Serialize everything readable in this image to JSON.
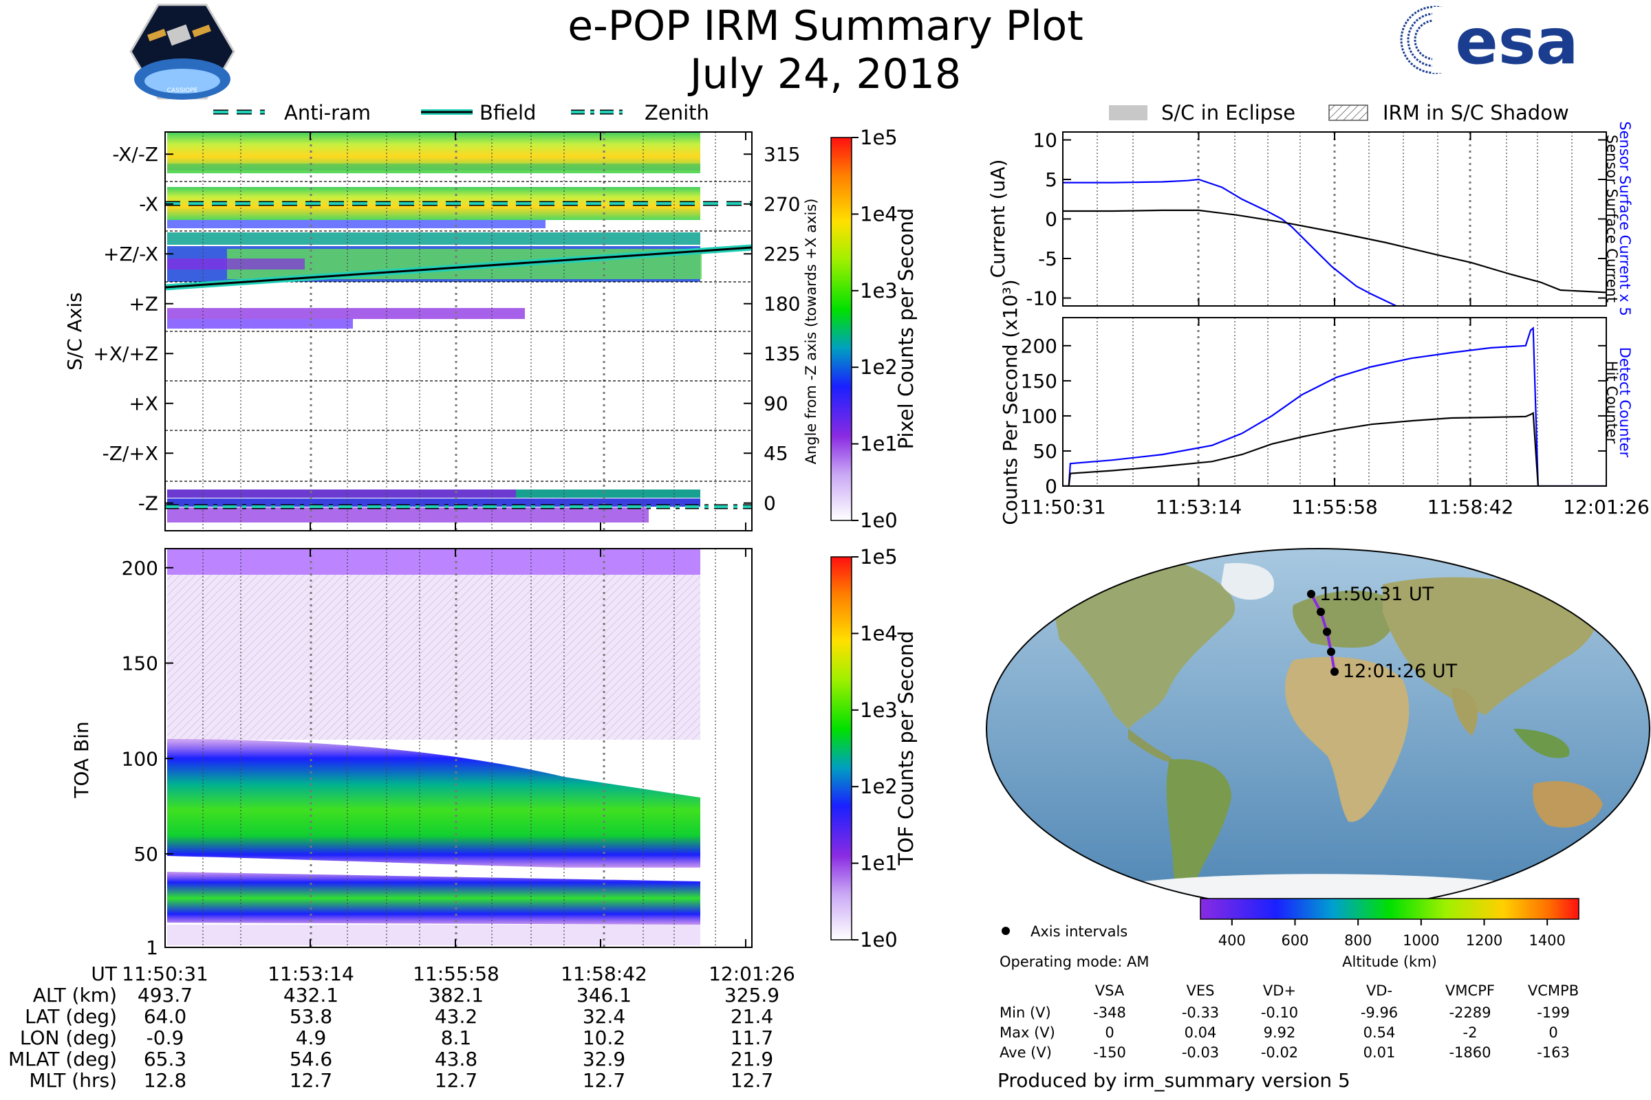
{
  "title": "e-POP IRM Summary Plot",
  "date": "July 24, 2018",
  "logos": {
    "left": "CASSIOPE",
    "right": "esa"
  },
  "legend_top_left": [
    {
      "label": "Anti-ram",
      "style": "dashed",
      "color": "#20d0b8"
    },
    {
      "label": "Bfield",
      "style": "solid",
      "color": "#20d0b8"
    },
    {
      "label": "Zenith",
      "style": "dashdot",
      "color": "#20d0b8"
    }
  ],
  "legend_top_right": [
    {
      "label": "S/C in Eclipse",
      "style": "filled"
    },
    {
      "label": "IRM in S/C Shadow",
      "style": "hatched"
    }
  ],
  "chart_data": [
    {
      "type": "heatmap",
      "name": "S/C Axis pixel counts",
      "ylabel": "S/C Axis",
      "y_tick_labels": [
        "-X/-Z",
        "-X",
        "+Z/-X",
        "+Z",
        "+X/+Z",
        "+X",
        "-Z/+X",
        "-Z"
      ],
      "y2label": "Angle from -Z axis (towards +X axis)",
      "y2_ticks": [
        315,
        270,
        225,
        180,
        135,
        90,
        45,
        0
      ],
      "ylim": [
        -25,
        335
      ],
      "colorbar": {
        "label": "Pixel Counts per Second",
        "ticks": [
          "1e0",
          "1e1",
          "1e2",
          "1e3",
          "1e4",
          "1e5"
        ],
        "scale": "log"
      },
      "lines": [
        {
          "name": "Anti-ram",
          "values_deg": [
            272,
            272
          ]
        },
        {
          "name": "Bfield",
          "values_deg": [
            188,
            234
          ]
        },
        {
          "name": "Zenith",
          "values_deg": [
            0,
            0
          ]
        }
      ]
    },
    {
      "type": "heatmap",
      "name": "TOA spectrogram",
      "ylabel": "TOA Bin",
      "y_ticks": [
        1,
        50,
        100,
        150,
        200
      ],
      "ylim": [
        1,
        210
      ],
      "colorbar": {
        "label": "TOF Counts per Second",
        "ticks": [
          "1e0",
          "1e1",
          "1e2",
          "1e3",
          "1e4",
          "1e5"
        ],
        "scale": "log"
      }
    },
    {
      "type": "line",
      "name": "Current",
      "ylabel": "Current (uA)",
      "y_ticks": [
        10,
        5,
        0,
        -5,
        -10
      ],
      "ylim": [
        -11,
        11
      ],
      "y2label_blue": "Sensor Surface Current x 5",
      "y2label_black": "Sensor Surface Current",
      "series": [
        {
          "name": "Sensor Surface Current x 5",
          "color": "#0000ff",
          "x_min": [
            0,
            1,
            2,
            2.5,
            2.73,
            3.2,
            3.6,
            4.1,
            4.4,
            4.6,
            5.0,
            5.4,
            5.9,
            6.2,
            6.7
          ],
          "y": [
            4.6,
            4.6,
            4.7,
            4.85,
            5.0,
            4.0,
            2.5,
            1.0,
            0.0,
            -1.0,
            -3.5,
            -6.0,
            -8.5,
            -9.5,
            -11
          ]
        },
        {
          "name": "Sensor Surface Current",
          "color": "#000000",
          "x_min": [
            0,
            1,
            2,
            2.73,
            3.5,
            4.5,
            5.5,
            6.5,
            7.5,
            8.2,
            9.0,
            9.6,
            10.0,
            10.92
          ],
          "y": [
            1.0,
            1.0,
            1.1,
            1.1,
            0.5,
            -0.5,
            -1.7,
            -3.0,
            -4.5,
            -5.5,
            -7.0,
            -8.0,
            -9.0,
            -9.3
          ]
        }
      ]
    },
    {
      "type": "line",
      "name": "Counts Per Second",
      "ylabel": "Counts Per Second (x10³)",
      "y_ticks": [
        0,
        50,
        100,
        150,
        200
      ],
      "ylim": [
        0,
        240
      ],
      "y2label_blue": "Detect Counter",
      "y2label_black": "Hit Counter",
      "series": [
        {
          "name": "Detect Counter",
          "color": "#0000ff",
          "x_min": [
            0,
            0.12,
            0.15,
            1.0,
            2.0,
            3.0,
            3.6,
            4.2,
            4.8,
            5.5,
            6.2,
            7.0,
            7.8,
            8.6,
            9.3,
            9.4,
            9.45,
            9.55,
            10.92
          ],
          "y": [
            0,
            0,
            32,
            37,
            45,
            58,
            75,
            100,
            130,
            155,
            170,
            182,
            190,
            197,
            200,
            222,
            225,
            0,
            0
          ]
        },
        {
          "name": "Hit Counter",
          "color": "#000000",
          "x_min": [
            0,
            0.12,
            0.15,
            1.0,
            2.0,
            3.0,
            3.6,
            4.2,
            4.8,
            5.5,
            6.2,
            7.0,
            7.8,
            8.6,
            9.3,
            9.4,
            9.45,
            9.55,
            10.92
          ],
          "y": [
            0,
            0,
            18,
            22,
            28,
            35,
            45,
            60,
            70,
            80,
            88,
            93,
            97,
            98,
            99,
            102,
            104,
            0,
            0
          ]
        }
      ]
    }
  ],
  "x_ticks": [
    "11:50:31",
    "11:53:14",
    "11:55:58",
    "11:58:42",
    "12:01:26"
  ],
  "table": {
    "rows": [
      {
        "label": "UT",
        "values": [
          "11:50:31",
          "11:53:14",
          "11:55:58",
          "11:58:42",
          "12:01:26"
        ]
      },
      {
        "label": "ALT (km)",
        "values": [
          "493.7",
          "432.1",
          "382.1",
          "346.1",
          "325.9"
        ]
      },
      {
        "label": "LAT (deg)",
        "values": [
          "64.0",
          "53.8",
          "43.2",
          "32.4",
          "21.4"
        ]
      },
      {
        "label": "LON (deg)",
        "values": [
          "-0.9",
          "4.9",
          "8.1",
          "10.2",
          "11.7"
        ]
      },
      {
        "label": "MLAT (deg)",
        "values": [
          "65.3",
          "54.6",
          "43.8",
          "32.9",
          "21.9"
        ]
      },
      {
        "label": "MLT (hrs)",
        "values": [
          "12.8",
          "12.7",
          "12.7",
          "12.7",
          "12.7"
        ]
      }
    ]
  },
  "map": {
    "start_label": "11:50:31 UT",
    "end_label": "12:01:26 UT",
    "track": [
      {
        "lat": 64.0,
        "lon": -0.9
      },
      {
        "lat": 53.8,
        "lon": 4.9
      },
      {
        "lat": 43.2,
        "lon": 8.1
      },
      {
        "lat": 32.4,
        "lon": 10.2
      },
      {
        "lat": 21.4,
        "lon": 11.7
      }
    ],
    "altitude_colorbar": {
      "label": "Altitude (km)",
      "ticks": [
        "400",
        "600",
        "800",
        "1000",
        "1200",
        "1400"
      ],
      "range": [
        300,
        1500
      ]
    },
    "axis_intervals_label": "Axis intervals",
    "operating_mode": "Operating mode: AM"
  },
  "voltages": {
    "columns": [
      "VSA",
      "VES",
      "VD+",
      "VD-",
      "VMCPF",
      "VCMPB"
    ],
    "rows": [
      {
        "label": "Min (V)",
        "values": [
          "-348",
          "-0.33",
          "-0.10",
          "-9.96",
          "-2289",
          "-199"
        ]
      },
      {
        "label": "Max (V)",
        "values": [
          "0",
          "0.04",
          "9.92",
          "0.54",
          "-2",
          "0"
        ]
      },
      {
        "label": "Ave (V)",
        "values": [
          "-150",
          "-0.03",
          "-0.02",
          "0.01",
          "-1860",
          "-163"
        ]
      }
    ]
  },
  "footer": "Produced by irm_summary version 5"
}
